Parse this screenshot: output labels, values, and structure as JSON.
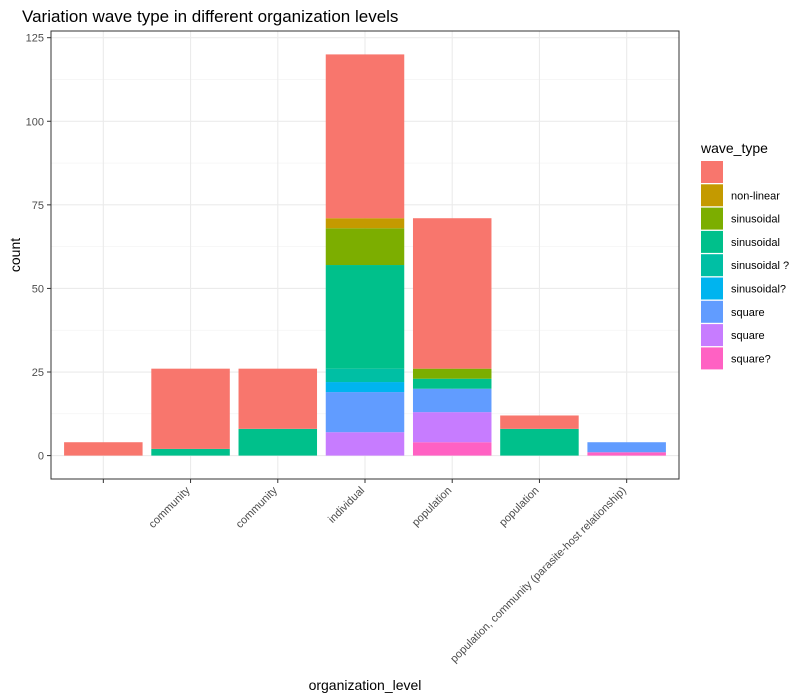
{
  "chart_data": {
    "type": "bar",
    "stacked": true,
    "title": "Variation wave type in different organization levels",
    "xlabel": "organization_level",
    "ylabel": "count",
    "ylim": [
      -7,
      127
    ],
    "yticks": [
      0,
      25,
      50,
      75,
      100,
      125
    ],
    "grid": true,
    "legend_position": "right",
    "legend_title": "wave_type",
    "categories": [
      "",
      "community",
      "community",
      "individual",
      "population",
      "population",
      "population, community (parasite-host relationship)"
    ],
    "series": [
      {
        "name": "",
        "color": "#F8766D",
        "values": [
          4,
          24,
          18,
          49,
          45,
          4,
          0
        ]
      },
      {
        "name": "non-linear",
        "color": "#C49A00",
        "values": [
          0,
          0,
          0,
          3,
          0,
          0,
          0
        ]
      },
      {
        "name": "sinusoidal",
        "color": "#7CAE00",
        "values": [
          0,
          0,
          0,
          11,
          3,
          0,
          0
        ]
      },
      {
        "name": "sinusoidal",
        "color": "#00C08B",
        "values": [
          0,
          2,
          8,
          31,
          3,
          8,
          0
        ]
      },
      {
        "name": "sinusoidal ?",
        "color": "#00BFA4",
        "values": [
          0,
          0,
          0,
          4,
          0,
          0,
          0
        ]
      },
      {
        "name": "sinusoidal?",
        "color": "#00B4EF",
        "values": [
          0,
          0,
          0,
          3,
          0,
          0,
          0
        ]
      },
      {
        "name": "square",
        "color": "#619CFF",
        "values": [
          0,
          0,
          0,
          12,
          7,
          0,
          3
        ]
      },
      {
        "name": "square",
        "color": "#C77CFF",
        "values": [
          0,
          0,
          0,
          7,
          9,
          0,
          0
        ]
      },
      {
        "name": "square?",
        "color": "#FF61C3",
        "values": [
          0,
          0,
          0,
          0,
          4,
          0,
          1
        ]
      }
    ]
  }
}
